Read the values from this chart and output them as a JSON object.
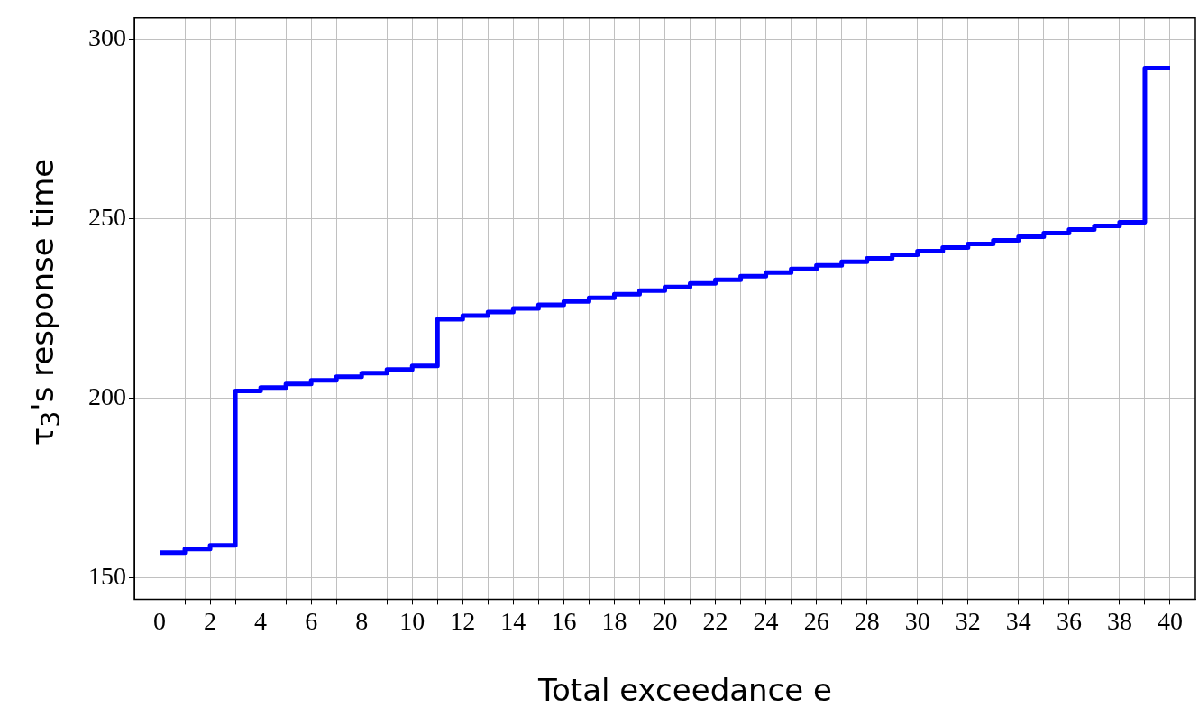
{
  "chart_data": {
    "type": "step",
    "xlabel": "Total exceedance e",
    "ylabel": "τ$_{3}$'s response time",
    "x": [
      0,
      1,
      2,
      3,
      4,
      5,
      6,
      7,
      8,
      9,
      10,
      11,
      12,
      13,
      14,
      15,
      16,
      17,
      18,
      19,
      20,
      21,
      22,
      23,
      24,
      25,
      26,
      27,
      28,
      29,
      30,
      31,
      32,
      33,
      34,
      35,
      36,
      37,
      38,
      39,
      40
    ],
    "series": [
      {
        "color": "#0000ff",
        "values": [
          157,
          158,
          159,
          202,
          203,
          204,
          205,
          206,
          207,
          208,
          209,
          222,
          223,
          224,
          225,
          226,
          227,
          228,
          229,
          230,
          231,
          232,
          233,
          234,
          235,
          236,
          237,
          238,
          239,
          240,
          241,
          242,
          243,
          244,
          245,
          246,
          247,
          248,
          249,
          292,
          292
        ]
      }
    ],
    "xlim": [
      -1,
      41
    ],
    "ylim": [
      144,
      306
    ],
    "xticks": [
      0,
      {
        "value": 1,
        "label": null
      },
      2,
      {
        "value": 3,
        "label": null
      },
      4,
      {
        "value": 5,
        "label": null
      },
      6,
      {
        "value": 7,
        "label": null
      },
      8,
      {
        "value": 9,
        "label": null
      },
      10,
      {
        "value": 11,
        "label": null
      },
      12,
      {
        "value": 13,
        "label": null
      },
      14,
      {
        "value": 15,
        "label": null
      },
      16,
      {
        "value": 17,
        "label": null
      },
      18,
      {
        "value": 19,
        "label": null
      },
      20,
      {
        "value": 21,
        "label": null
      },
      22,
      {
        "value": 23,
        "label": null
      },
      24,
      {
        "value": 25,
        "label": null
      },
      26,
      {
        "value": 27,
        "label": null
      },
      28,
      {
        "value": 29,
        "label": null
      },
      30,
      {
        "value": 31,
        "label": null
      },
      32,
      {
        "value": 33,
        "label": null
      },
      34,
      {
        "value": 35,
        "label": null
      },
      36,
      {
        "value": 37,
        "label": null
      },
      38,
      {
        "value": 39,
        "label": null
      },
      40
    ],
    "yticks": [
      150,
      200,
      250,
      300
    ],
    "grid": true,
    "legend": false,
    "marker": "none",
    "line_style": "solid"
  }
}
